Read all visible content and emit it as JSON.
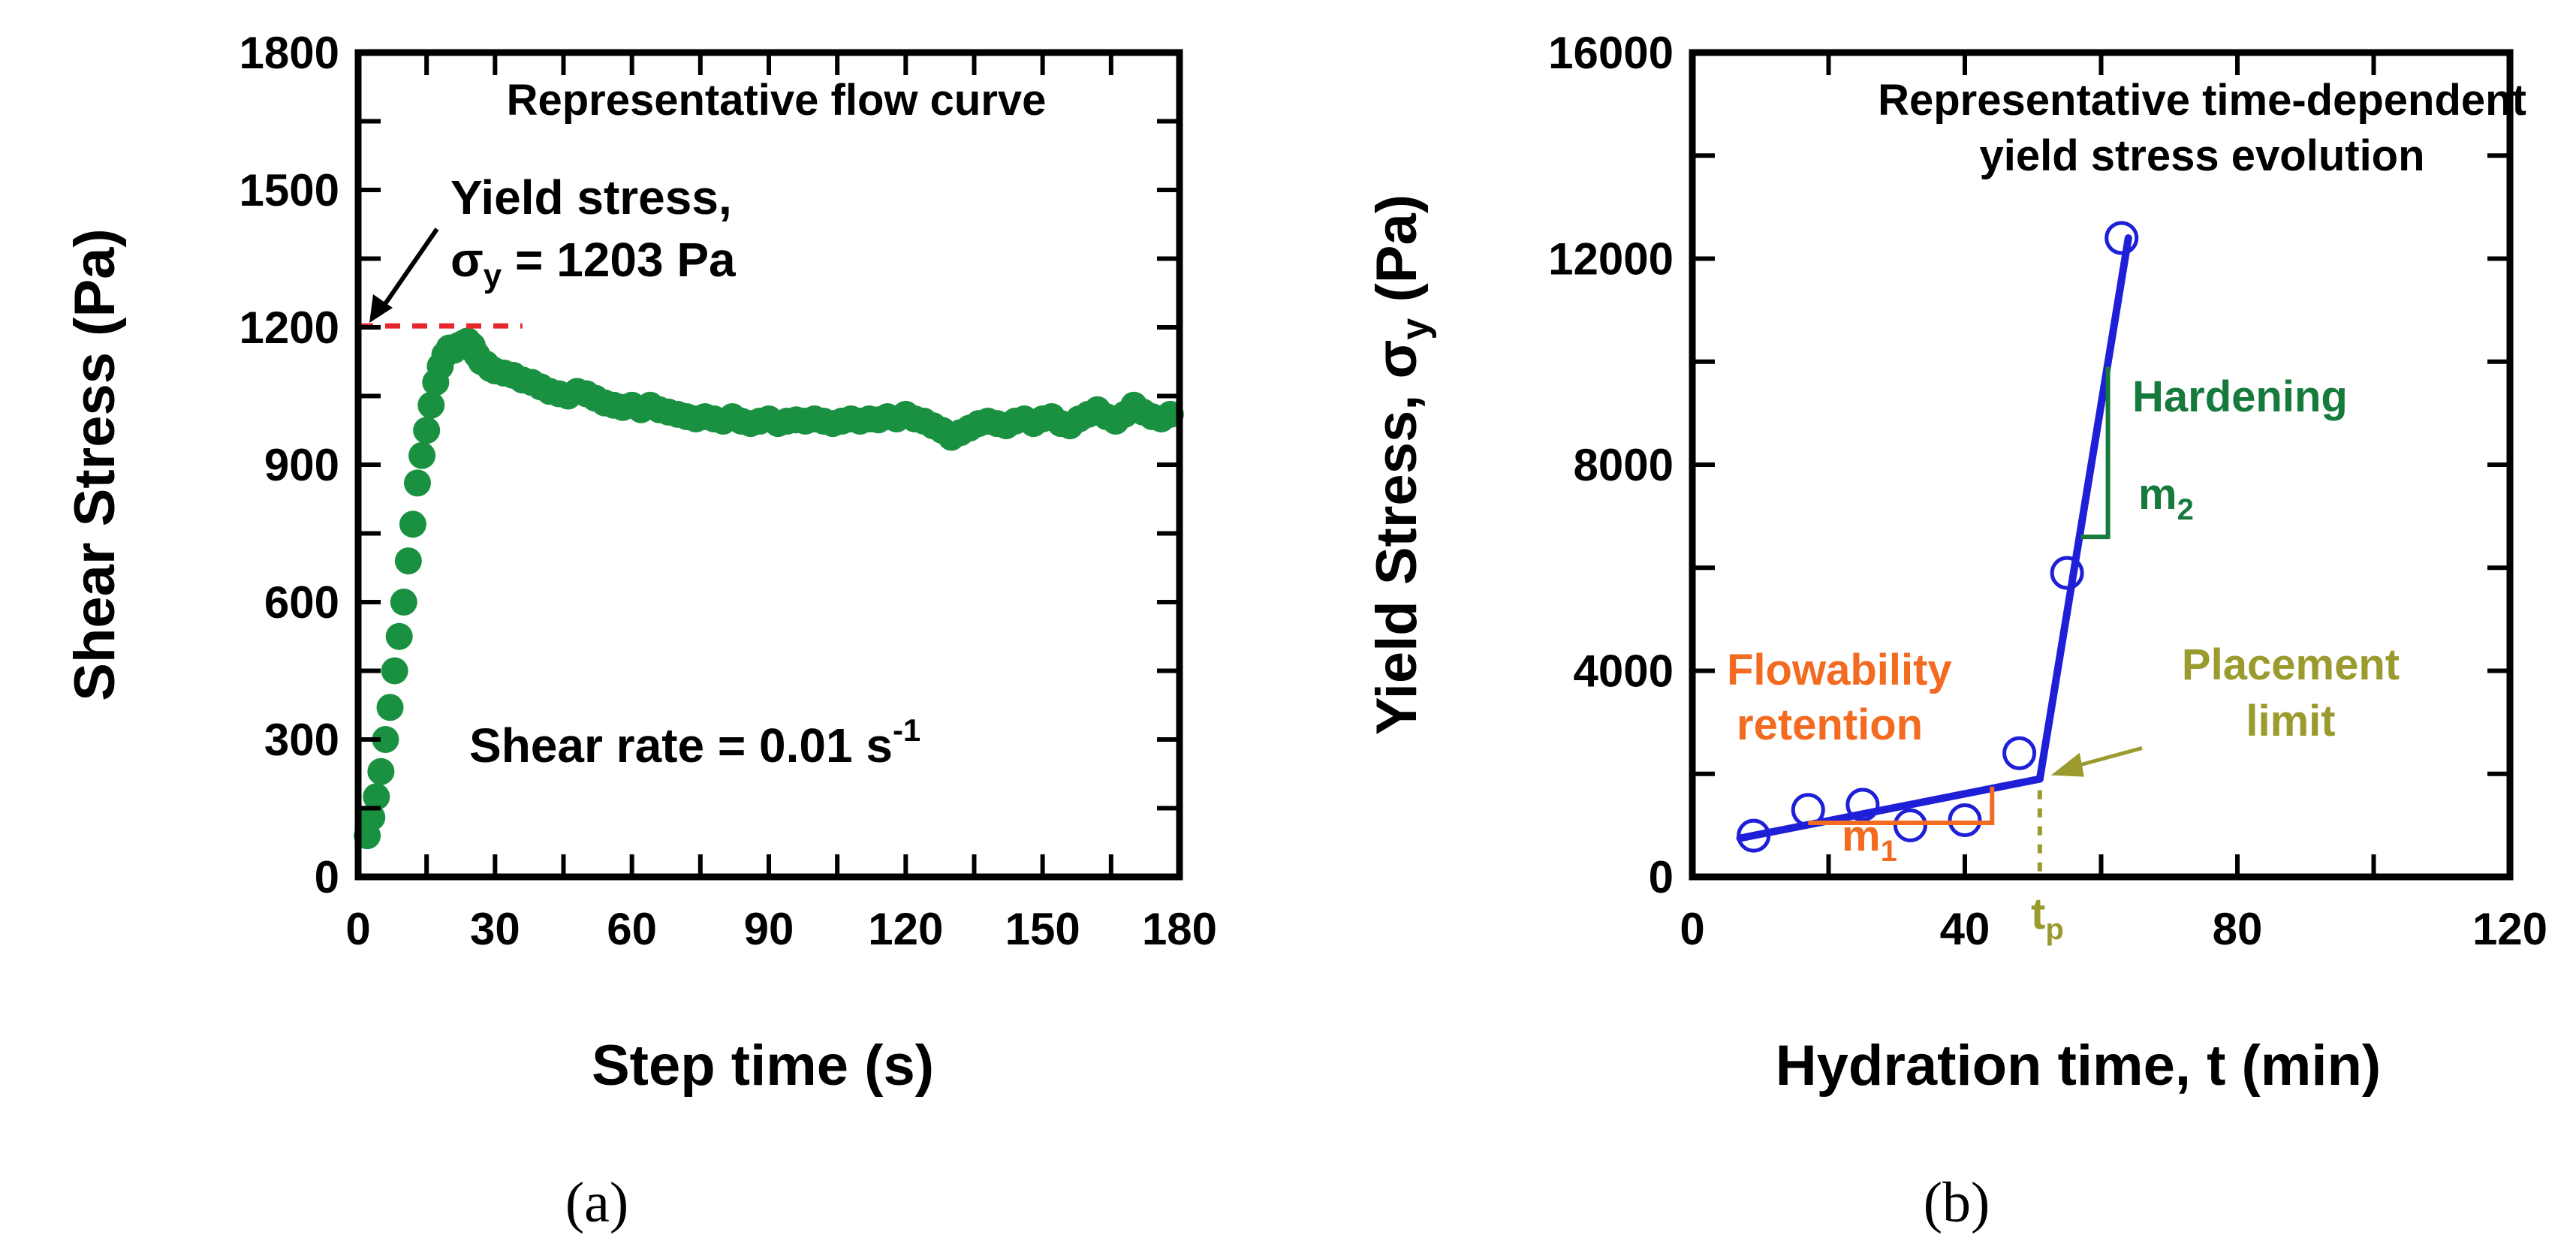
{
  "chart_data": [
    {
      "id": "a",
      "type": "scatter",
      "title": "Representative flow curve",
      "xlabel": "Step time (s)",
      "ylabel": "Shear Stress (Pa)",
      "xlim": [
        0,
        180
      ],
      "ylim": [
        0,
        1800
      ],
      "xticks": [
        0,
        30,
        60,
        90,
        120,
        150,
        180
      ],
      "yticks": [
        0,
        300,
        600,
        900,
        1200,
        1500,
        1800
      ],
      "caption": "(a)",
      "colors": {
        "series": "#1a9141",
        "yield_line": "#e8262d",
        "text": "#000000"
      },
      "yield_stress": {
        "value": 1203,
        "label_line1": "Yield stress,",
        "label_sym": "σ",
        "label_sub": "y",
        "label_rest": " = 1203 Pa"
      },
      "shear_rate": {
        "label": "Shear rate = 0.01 s",
        "sup": "-1"
      },
      "series": [
        {
          "name": "Shear stress",
          "x": [
            2,
            3,
            4,
            5,
            6,
            7,
            8,
            9,
            10,
            11,
            12,
            13,
            14,
            15,
            16,
            17,
            18,
            19,
            20,
            21,
            22,
            23,
            24,
            25,
            26,
            27,
            28,
            29,
            30,
            32,
            34,
            36,
            38,
            40,
            42,
            44,
            46,
            48,
            50,
            52,
            54,
            56,
            58,
            60,
            62,
            64,
            66,
            68,
            70,
            72,
            74,
            76,
            78,
            80,
            82,
            84,
            86,
            88,
            90,
            92,
            94,
            96,
            98,
            100,
            102,
            104,
            106,
            108,
            110,
            112,
            114,
            116,
            118,
            120,
            122,
            124,
            126,
            128,
            130,
            132,
            134,
            136,
            138,
            140,
            142,
            144,
            146,
            148,
            150,
            152,
            154,
            156,
            158,
            160,
            162,
            164,
            166,
            168,
            170,
            172,
            174,
            176,
            178
          ],
          "y": [
            90,
            130,
            175,
            230,
            300,
            370,
            450,
            525,
            600,
            690,
            770,
            860,
            920,
            975,
            1030,
            1080,
            1115,
            1140,
            1155,
            1150,
            1160,
            1165,
            1170,
            1160,
            1140,
            1125,
            1120,
            1110,
            1105,
            1100,
            1095,
            1085,
            1080,
            1070,
            1060,
            1055,
            1050,
            1060,
            1055,
            1045,
            1035,
            1030,
            1025,
            1030,
            1020,
            1030,
            1020,
            1015,
            1010,
            1005,
            1000,
            1005,
            1000,
            995,
            1005,
            995,
            990,
            995,
            1000,
            990,
            995,
            998,
            995,
            1000,
            995,
            990,
            995,
            1000,
            995,
            1000,
            998,
            1005,
            1000,
            1010,
            1000,
            995,
            985,
            975,
            960,
            970,
            980,
            990,
            995,
            990,
            985,
            995,
            1000,
            990,
            1000,
            1005,
            990,
            985,
            1000,
            1010,
            1020,
            1005,
            995,
            1010,
            1030,
            1015,
            1005,
            1000,
            1010
          ]
        }
      ]
    },
    {
      "id": "b",
      "type": "scatter",
      "title": [
        "Representative time-dependent",
        "yield stress evolution"
      ],
      "xlabel": "Hydration time, t (min)",
      "ylabel": "Yield Stress, σ",
      "ylabel_sub": "y",
      "ylabel_unit": " (Pa)",
      "xlim": [
        0,
        120
      ],
      "ylim": [
        0,
        16000
      ],
      "xticks": [
        0,
        40,
        80,
        120
      ],
      "yticks": [
        0,
        4000,
        8000,
        12000,
        16000
      ],
      "caption": "(b)",
      "colors": {
        "points": "#1f1fd8",
        "fit": "#1f1fd8",
        "hardening": "#167a3c",
        "flowability": "#f26b21",
        "placement": "#9a9a2e"
      },
      "points": {
        "x": [
          9,
          17,
          25,
          32,
          40,
          48,
          55,
          63
        ],
        "y": [
          800,
          1300,
          1400,
          1000,
          1100,
          2400,
          5900,
          12400
        ]
      },
      "fit_lines": [
        {
          "name": "Flowability retention",
          "x": [
            7,
            51
          ],
          "y": [
            750,
            1900
          ]
        },
        {
          "name": "Hardening",
          "x": [
            51,
            64
          ],
          "y": [
            1900,
            12400
          ]
        }
      ],
      "labels": {
        "hardening": "Hardening",
        "m2": "m",
        "m2_sub": "2",
        "flowability_line1": "Flowability",
        "flowability_line2": "retention",
        "m1": "m",
        "m1_sub": "1",
        "placement_line1": "Placement",
        "placement_line2": "limit",
        "tp": "t",
        "tp_sub": "p"
      },
      "tp_value": 51
    }
  ]
}
